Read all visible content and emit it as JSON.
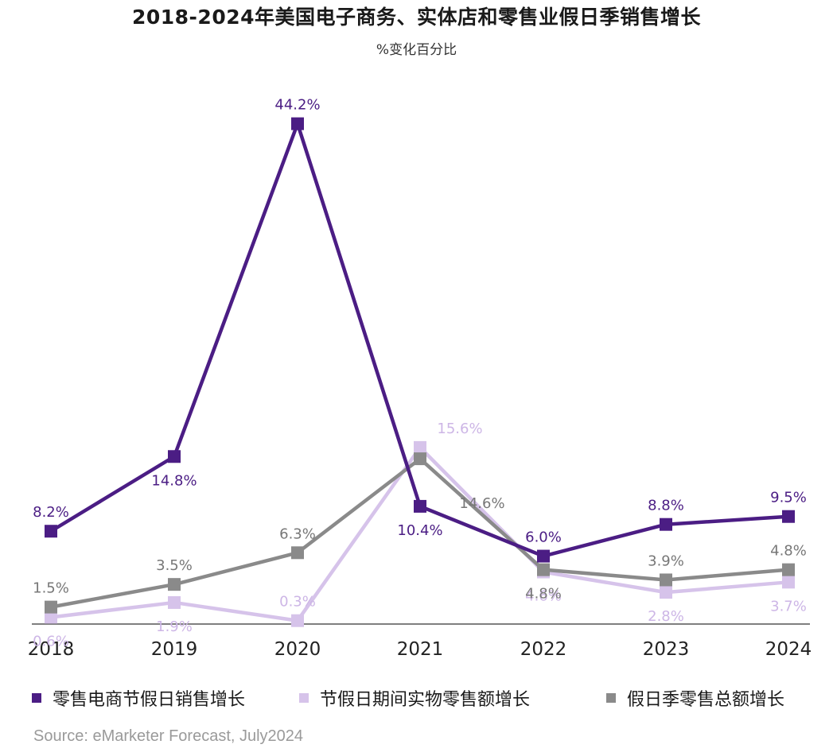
{
  "title": "2018-2024年美国电子商务、实体店和零售业假日季销售增长",
  "subtitle": "%变化百分比",
  "source": "Source: eMarketer Forecast, July2024",
  "chart_data": {
    "type": "line",
    "categories": [
      "2018",
      "2019",
      "2020",
      "2021",
      "2022",
      "2023",
      "2024"
    ],
    "ylim": [
      0,
      46
    ],
    "grid": false,
    "legend_position": "bottom",
    "series": [
      {
        "name": "零售电商节假日销售增长",
        "color": "#4b1d84",
        "values": [
          8.2,
          14.8,
          44.2,
          10.4,
          6.0,
          8.8,
          9.5
        ],
        "labels": [
          "8.2%",
          "14.8%",
          "44.2%",
          "10.4%",
          "6.0%",
          "8.8%",
          "9.5%"
        ]
      },
      {
        "name": "节假日期间实物零售额增长",
        "color": "#d6c3ea",
        "values": [
          0.6,
          1.9,
          0.3,
          15.6,
          4.6,
          2.8,
          3.7
        ],
        "labels": [
          "0.6%",
          "1.9%",
          "0.3%",
          "15.6%",
          "4.6%",
          "2.8%",
          "3.7%"
        ]
      },
      {
        "name": "假日季零售总额增长",
        "color": "#8a8a8a",
        "values": [
          1.5,
          3.5,
          6.3,
          14.6,
          4.8,
          3.9,
          4.8
        ],
        "labels": [
          "1.5%",
          "3.5%",
          "6.3%",
          "14.6%",
          "4.8%",
          "3.9%",
          "4.8%"
        ]
      }
    ]
  }
}
